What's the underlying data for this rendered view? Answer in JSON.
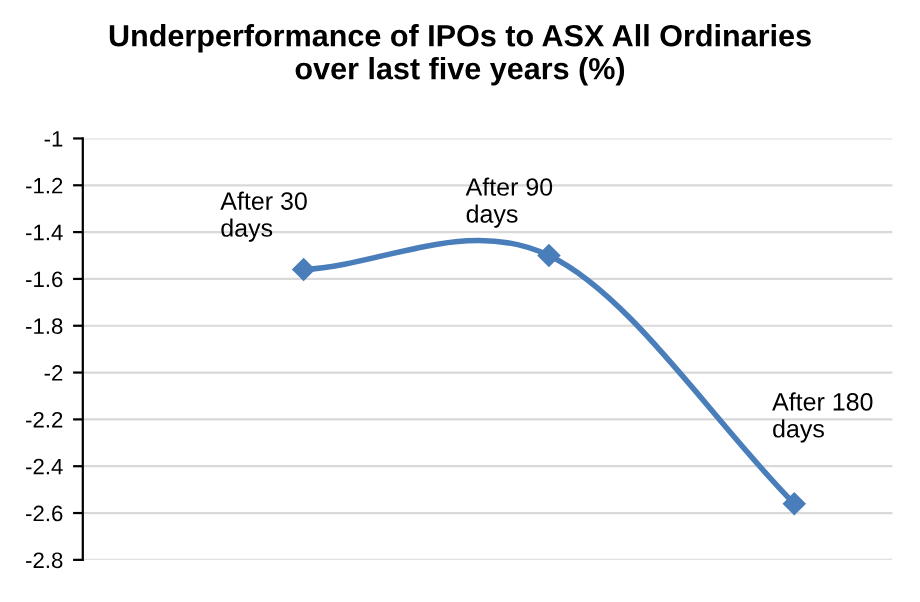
{
  "chart_data": {
    "type": "line",
    "title": "Underperformance of IPOs to ASX All Ordinaries\nover last five years (%)",
    "categories": [
      null,
      null,
      null
    ],
    "series": [
      {
        "color": "#4a7ebb",
        "values": [
          -1.56,
          -1.5,
          -2.56
        ]
      }
    ],
    "annotations": [
      "After 30\ndays",
      "After 90\ndays",
      "After 180\ndays"
    ],
    "ylim": [
      -2.8,
      -1
    ],
    "yticks": [
      -2.8,
      -2.6,
      -2.4,
      -2.2,
      -2,
      -1.8,
      -1.6,
      -1.4,
      -1.2,
      -1
    ],
    "grid": "y",
    "marker": "diamond",
    "line_style": "solid",
    "legend": false
  }
}
